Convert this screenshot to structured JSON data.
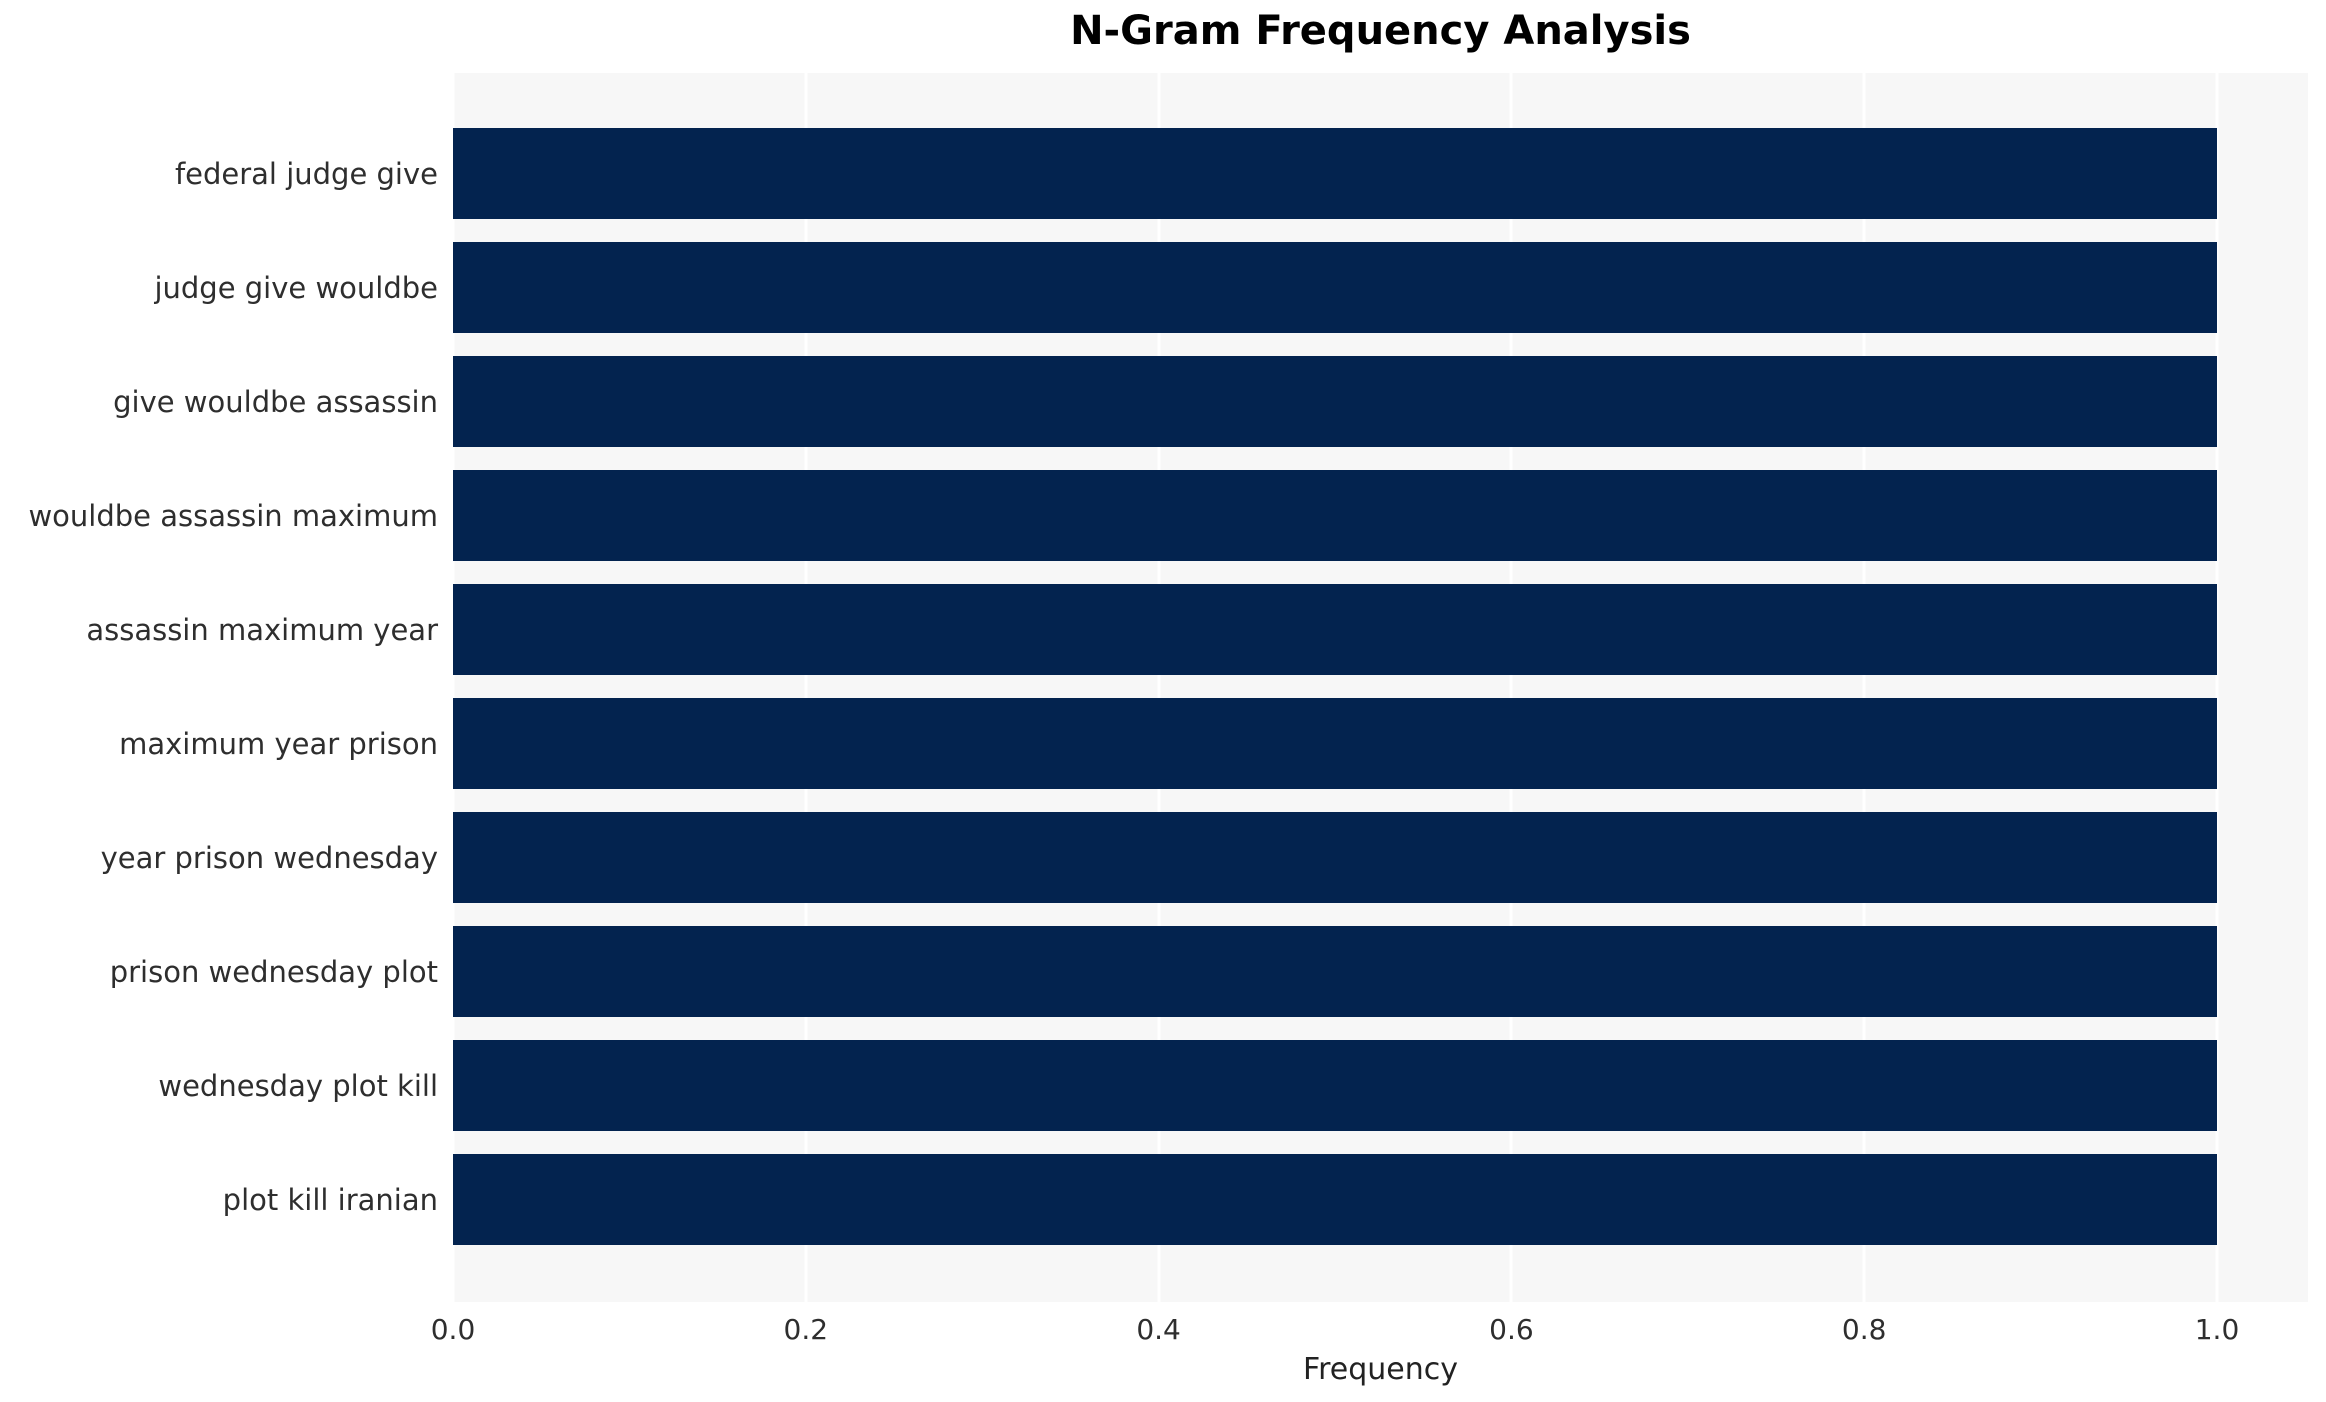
{
  "chart_data": {
    "type": "bar",
    "orientation": "horizontal",
    "title": "N-Gram Frequency Analysis",
    "xlabel": "Frequency",
    "ylabel": "",
    "categories": [
      "federal judge give",
      "judge give wouldbe",
      "give wouldbe assassin",
      "wouldbe assassin maximum",
      "assassin maximum year",
      "maximum year prison",
      "year prison wednesday",
      "prison wednesday plot",
      "wednesday plot kill",
      "plot kill iranian"
    ],
    "values": [
      1.0,
      1.0,
      1.0,
      1.0,
      1.0,
      1.0,
      1.0,
      1.0,
      1.0,
      1.0
    ],
    "xticks": [
      0.0,
      0.2,
      0.4,
      0.6,
      0.8,
      1.0
    ],
    "xtick_labels": [
      "0.0",
      "0.2",
      "0.4",
      "0.6",
      "0.8",
      "1.0"
    ],
    "xlim": [
      0.0,
      1.05
    ],
    "grid": true,
    "legend": false,
    "colors": {
      "bar": "#03234F",
      "plot_background": "#F7F7F7",
      "gridline": "#FFFFFF",
      "tick_label": "#2E2E2E",
      "title": "#000000"
    }
  }
}
